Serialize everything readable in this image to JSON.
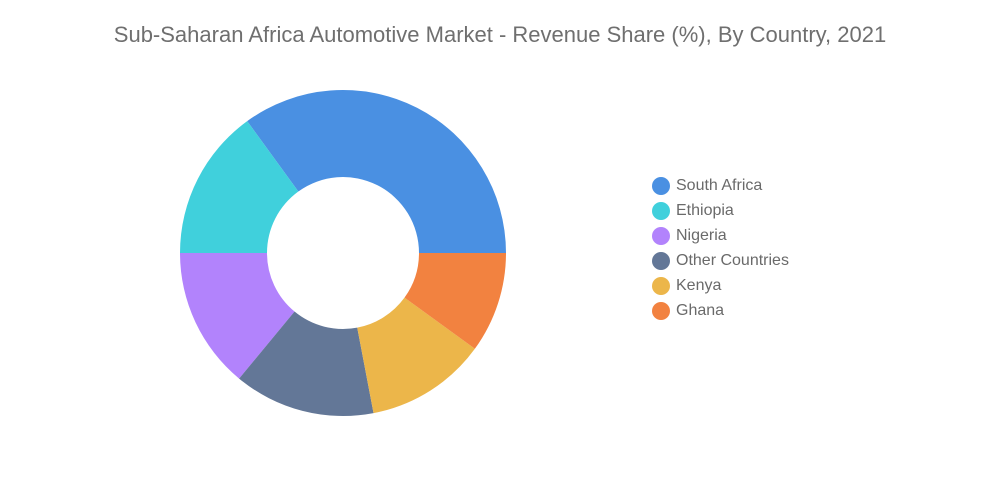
{
  "chart_data": {
    "type": "pie",
    "title": "Sub-Saharan Africa Automotive Market - Revenue Share (%), By Country, 2021",
    "donut": true,
    "legend_position": "right",
    "categories": [
      "South Africa",
      "Ethiopia",
      "Nigeria",
      "Other Countries",
      "Kenya",
      "Ghana"
    ],
    "values": [
      35.0,
      15.0,
      14.0,
      14.0,
      12.0,
      10.0
    ],
    "colors": [
      "#4a90e2",
      "#40d0dc",
      "#b283fc",
      "#637797",
      "#ecb64a",
      "#f28240"
    ]
  }
}
